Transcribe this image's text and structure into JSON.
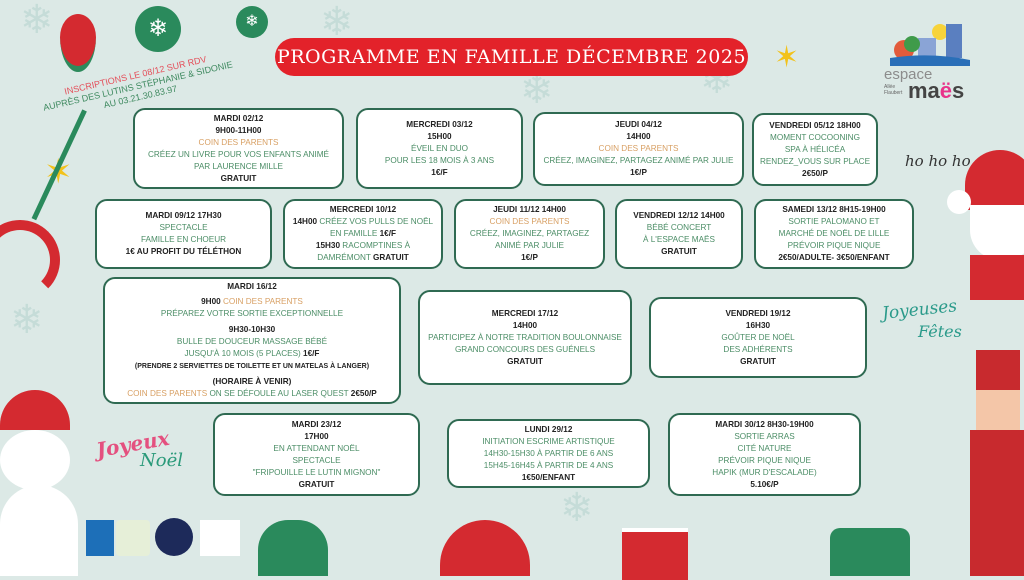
{
  "title": "PROGRAMME EN FAMILLE DÉCEMBRE 2025",
  "inscriptions": {
    "line1": "INSCRIPTIONS LE 08/12 SUR RDV",
    "line2": "AUPRÈS DES LUTINS STÉPHANIE & SIDONIE",
    "line3": "AU 03.21.30.83.97"
  },
  "logo": {
    "word1": "espace",
    "word2_a": "ma",
    "word2_b": "ë",
    "word2_c": "s",
    "address": "Allée Flaubert"
  },
  "decorations": {
    "hohoho": "ho ho ho",
    "joyeux_noel_1": "Joyeux",
    "joyeux_noel_2": "Noël",
    "joyeuses_fetes_1": "Joyeuses",
    "joyeuses_fetes_2": "Fêtes"
  },
  "colors": {
    "background": "#dce9e6",
    "title_bg": "#e3222a",
    "box_border": "#2f6a52",
    "accent_orange": "#d8a064",
    "accent_green": "#4b8d66"
  },
  "events": [
    {
      "lines": [
        [
          [
            "b",
            "MARDI 02/12"
          ]
        ],
        [
          [
            "b",
            "9H00-11H00"
          ]
        ],
        [
          [
            "o",
            "COIN DES PARENTS"
          ]
        ],
        [
          [
            "g",
            "CRÉEZ UN LIVRE POUR VOS ENFANTS ANIMÉ"
          ]
        ],
        [
          [
            "g",
            "PAR LAURENCE MILLE"
          ]
        ],
        [
          [
            "b",
            "GRATUIT"
          ]
        ]
      ]
    },
    {
      "lines": [
        [
          [
            "b",
            "MERCREDI 03/12"
          ]
        ],
        [
          [
            "b",
            "15H00"
          ]
        ],
        [
          [
            "g",
            "ÉVEIL EN DUO"
          ]
        ],
        [
          [
            "g",
            "POUR LES 18 MOIS À 3 ANS"
          ]
        ],
        [
          [
            "b",
            "1€/F"
          ]
        ]
      ]
    },
    {
      "lines": [
        [
          [
            "b",
            "JEUDI 04/12"
          ]
        ],
        [
          [
            "b",
            "14H00"
          ]
        ],
        [
          [
            "o",
            "COIN DES PARENTS"
          ]
        ],
        [
          [
            "g",
            "CRÉEZ, IMAGINEZ, PARTAGEZ ANIMÉ PAR JULIE"
          ]
        ],
        [
          [
            "b",
            "1€/P"
          ]
        ]
      ]
    },
    {
      "lines": [
        [
          [
            "b",
            "VENDREDI 05/12 18H00"
          ]
        ],
        [
          [
            "g",
            "MOMENT COCOONING"
          ]
        ],
        [
          [
            "g",
            "SPA À HÉLICÉA"
          ]
        ],
        [
          [
            "g",
            "RENDEZ_VOUS SUR PLACE"
          ]
        ],
        [
          [
            "b",
            "2€50/P"
          ]
        ]
      ]
    },
    {
      "lines": [
        [
          [
            "b",
            "MARDI 09/12 17H30"
          ]
        ],
        [
          [
            "g",
            "SPECTACLE"
          ]
        ],
        [
          [
            "g",
            "FAMILLE EN CHOEUR"
          ]
        ],
        [
          [
            "b",
            "1€ AU PROFIT DU TÉLÉTHON"
          ]
        ]
      ]
    },
    {
      "lines": [
        [
          [
            "b",
            "MERCREDI 10/12"
          ]
        ],
        [
          [
            "b",
            "14H00 "
          ],
          [
            "g",
            "CRÉEZ VOS PULLS DE NOËL"
          ]
        ],
        [
          [
            "g",
            "EN FAMILLE "
          ],
          [
            "b",
            "1€/F"
          ]
        ],
        [
          [
            "b",
            "15H30 "
          ],
          [
            "g",
            "RACOMPTINES À"
          ]
        ],
        [
          [
            "g",
            "DAMRÉMONT "
          ],
          [
            "b",
            "GRATUIT"
          ]
        ]
      ]
    },
    {
      "lines": [
        [
          [
            "b",
            "JEUDI 11/12 14H00"
          ]
        ],
        [
          [
            "o",
            "COIN DES PARENTS"
          ]
        ],
        [
          [
            "g",
            "CRÉEZ, IMAGINEZ, PARTAGEZ"
          ]
        ],
        [
          [
            "g",
            "ANIMÉ PAR JULIE"
          ]
        ],
        [
          [
            "b",
            "1€/P"
          ]
        ]
      ]
    },
    {
      "lines": [
        [
          [
            "b",
            "VENDREDI 12/12 14H00"
          ]
        ],
        [
          [
            "g",
            "BÉBÉ CONCERT"
          ]
        ],
        [
          [
            "g",
            "À L'ESPACE MAËS"
          ]
        ],
        [
          [
            "b",
            "GRATUIT"
          ]
        ]
      ]
    },
    {
      "lines": [
        [
          [
            "b",
            "SAMEDI 13/12 8H15-19H00"
          ]
        ],
        [
          [
            "g",
            "SORTIE PALOMANO ET"
          ]
        ],
        [
          [
            "g",
            "MARCHÉ DE NOËL DE LILLE"
          ]
        ],
        [
          [
            "g",
            "PRÉVOIR PIQUE NIQUE"
          ]
        ],
        [
          [
            "b",
            "2€50/ADULTE- 3€50/ENFANT"
          ]
        ]
      ]
    },
    {
      "lines": [
        [
          [
            "b",
            "MARDI 16/12"
          ]
        ],
        [],
        [
          [
            "b",
            "9H00 "
          ],
          [
            "o",
            "COIN DES PARENTS"
          ]
        ],
        [
          [
            "g",
            "PRÉPAREZ VOTRE SORTIE EXCEPTIONNELLE"
          ]
        ],
        [],
        [
          [
            "b",
            "9H30-10H30"
          ]
        ],
        [
          [
            "g",
            "BULLE DE DOUCEUR MASSAGE BÉBÉ"
          ]
        ],
        [
          [
            "g",
            "JUSQU'À 10 MOIS (5 PLACES) "
          ],
          [
            "b",
            "1€/F"
          ]
        ],
        [
          [
            "s",
            "(PRENDRE 2 SERVIETTES DE TOILETTE ET UN MATELAS À LANGER)"
          ]
        ],
        [],
        [
          [
            "b",
            "(HORAIRE À VENIR)"
          ]
        ],
        [
          [
            "o",
            "COIN DES PARENTS "
          ],
          [
            "g",
            "ON SE DÉFOULE AU LASER QUEST "
          ],
          [
            "b",
            "2€50/P"
          ]
        ]
      ]
    },
    {
      "lines": [
        [
          [
            "b",
            "MERCREDI 17/12"
          ]
        ],
        [
          [
            "b",
            "14H00"
          ]
        ],
        [
          [
            "g",
            "PARTICIPEZ À NOTRE TRADITION BOULONNAISE"
          ]
        ],
        [
          [
            "g",
            "GRAND CONCOURS DES GUÉNELS"
          ]
        ],
        [
          [
            "b",
            "GRATUIT"
          ]
        ]
      ]
    },
    {
      "lines": [
        [
          [
            "b",
            "VENDREDI 19/12"
          ]
        ],
        [
          [
            "b",
            "16H30"
          ]
        ],
        [
          [
            "g",
            "GOÛTER DE NOËL"
          ]
        ],
        [
          [
            "g",
            "DES ADHÉRENTS"
          ]
        ],
        [
          [
            "b",
            "GRATUIT"
          ]
        ]
      ]
    },
    {
      "lines": [
        [
          [
            "b",
            "MARDI 23/12"
          ]
        ],
        [
          [
            "b",
            "17H00"
          ]
        ],
        [
          [
            "g",
            "EN ATTENDANT NOËL"
          ]
        ],
        [
          [
            "g",
            "SPECTACLE"
          ]
        ],
        [
          [
            "g",
            "\"FRIPOUILLE LE LUTIN MIGNON\""
          ]
        ],
        [
          [
            "b",
            "GRATUIT"
          ]
        ]
      ]
    },
    {
      "lines": [
        [
          [
            "b",
            "LUNDI 29/12"
          ]
        ],
        [
          [
            "g",
            "INITIATION ESCRIME ARTISTIQUE"
          ]
        ],
        [
          [
            "g",
            "14H30-15H30  À PARTIR DE 6 ANS"
          ]
        ],
        [
          [
            "g",
            "15H45-16H45 À PARTIR DE 4 ANS"
          ]
        ],
        [
          [
            "b",
            "1€50/ENFANT"
          ]
        ]
      ]
    },
    {
      "lines": [
        [
          [
            "b",
            "MARDI 30/12 8H30-19H00"
          ]
        ],
        [
          [
            "g",
            "SORTIE ARRAS"
          ]
        ],
        [
          [
            "g",
            "CITÉ NATURE"
          ]
        ],
        [
          [
            "g",
            "PRÉVOIR PIQUE NIQUE"
          ]
        ],
        [
          [
            "g",
            "HAPIK (MUR D'ESCALADE)"
          ]
        ],
        [
          [
            "b",
            "5.10€/P"
          ]
        ]
      ]
    }
  ]
}
